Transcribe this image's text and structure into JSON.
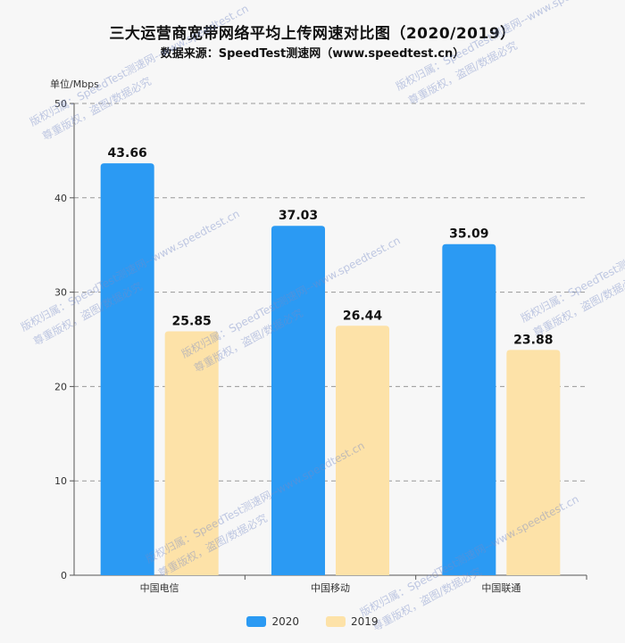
{
  "title": "三大运营商宽带网络平均上传网速对比图（2020/2019）",
  "subtitle": "数据来源：SpeedTest测速网（www.speedtest.cn）",
  "watermark_lines": [
    "版权归属：SpeedTest测速网--www.speedtest.cn",
    "尊重版权，盗图/数据必究"
  ],
  "colors": {
    "series_2020": "#2b9af3",
    "series_2019": "#fde2a8",
    "grid": "#999999",
    "axis": "#555555"
  },
  "chart_data": {
    "type": "bar",
    "title": "三大运营商宽带网络平均上传网速对比图（2020/2019）",
    "subtitle": "数据来源：SpeedTest测速网（www.speedtest.cn）",
    "ylabel": "单位/Mbps",
    "xlabel": "",
    "ylim": [
      0,
      50
    ],
    "yticks": [
      0,
      10,
      20,
      30,
      40,
      50
    ],
    "categories": [
      "中国电信",
      "中国移动",
      "中国联通"
    ],
    "series": [
      {
        "name": "2020",
        "values": [
          43.66,
          37.03,
          35.09
        ]
      },
      {
        "name": "2019",
        "values": [
          25.85,
          26.44,
          23.88
        ]
      }
    ],
    "grid": true,
    "legend": "bottom-center"
  }
}
